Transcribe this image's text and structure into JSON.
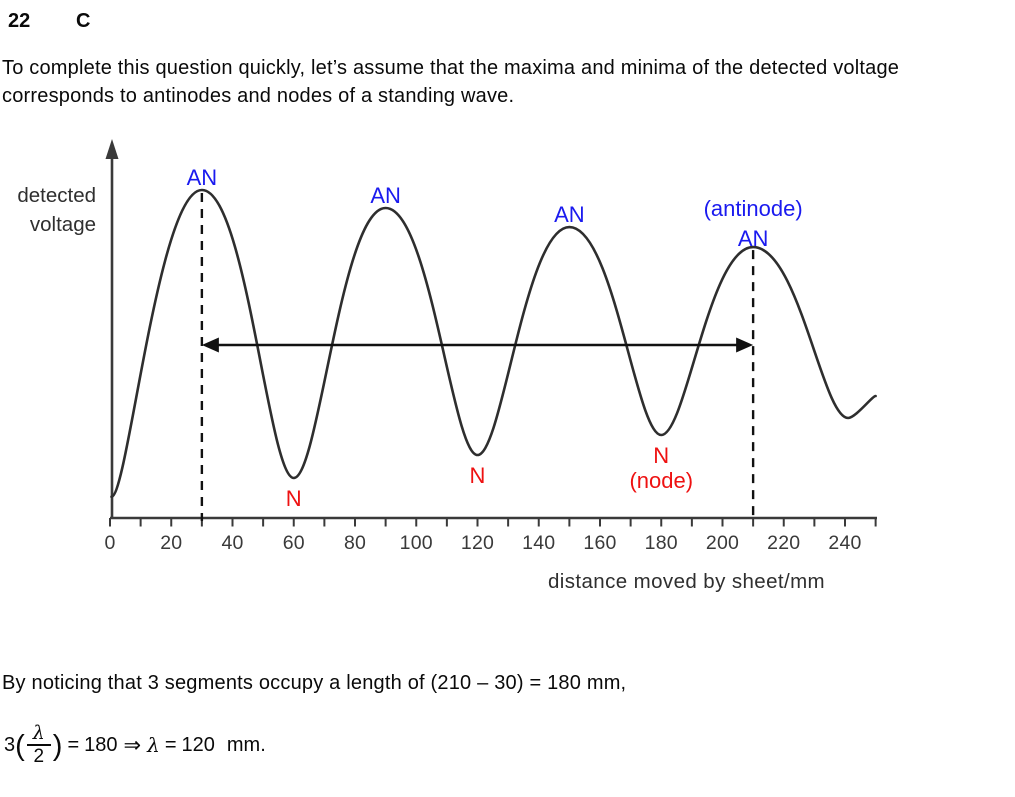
{
  "header": {
    "question_number": "22",
    "answer": "C"
  },
  "intro": {
    "lines": [
      "To complete this question quickly, let’s assume that the maxima and minima of the detected voltage",
      "corresponds to antinodes and nodes of a standing wave."
    ]
  },
  "chart_data": {
    "type": "line",
    "xlabel": "distance moved by sheet/mm",
    "ylabel_lines": [
      "detected",
      "voltage"
    ],
    "xlim_mm": [
      0,
      250
    ],
    "x_ticks_minor_step_mm": 10,
    "x_tick_labels": [
      0,
      20,
      40,
      60,
      80,
      100,
      120,
      140,
      160,
      180,
      200,
      220,
      240
    ],
    "y_units": "relative detected voltage (axis unnumbered)",
    "curve_points": [
      {
        "mm": 0.5,
        "v": 0.065,
        "kind": "start"
      },
      {
        "mm": 30,
        "v": 1.0,
        "kind": "max"
      },
      {
        "mm": 60,
        "v": 0.122,
        "kind": "min"
      },
      {
        "mm": 90,
        "v": 0.945,
        "kind": "max"
      },
      {
        "mm": 120,
        "v": 0.192,
        "kind": "min"
      },
      {
        "mm": 150,
        "v": 0.887,
        "kind": "max"
      },
      {
        "mm": 180,
        "v": 0.253,
        "kind": "min"
      },
      {
        "mm": 210,
        "v": 0.826,
        "kind": "max"
      },
      {
        "mm": 241,
        "v": 0.305,
        "kind": "min"
      },
      {
        "mm": 250,
        "v": 0.372,
        "kind": "end"
      }
    ],
    "antinodes": [
      {
        "mm": 30,
        "v": 1.0,
        "label": "AN",
        "dashed_line": true
      },
      {
        "mm": 90,
        "v": 0.945,
        "label": "AN"
      },
      {
        "mm": 150,
        "v": 0.887,
        "label": "AN"
      },
      {
        "mm": 210,
        "v": 0.826,
        "label": "AN",
        "annotation": "(antinode)",
        "dashed_line": true
      }
    ],
    "nodes": [
      {
        "mm": 60,
        "v": 0.122,
        "label": "N"
      },
      {
        "mm": 120,
        "v": 0.192,
        "label": "N"
      },
      {
        "mm": 180,
        "v": 0.253,
        "label": "N",
        "annotation": "(node)"
      }
    ],
    "arrow": {
      "from_mm": 30,
      "to_mm": 210,
      "double_headed": true
    },
    "colors": {
      "antinode_label": "#1a1aef",
      "node_label": "#ee1111",
      "curve": "#2e2e2e",
      "axis": "#3a3a3a",
      "dashed": "#111111"
    }
  },
  "conclusion": "By noticing that 3 segments occupy a length of (210 – 30) = 180 mm,",
  "formula": {
    "coefficient": "3",
    "open_paren": "(",
    "numerator": "λ",
    "denominator": "2",
    "close_paren": ")",
    "equals1": "=",
    "rhs1": "180",
    "implies": "⇒",
    "lambda": "λ",
    "equals2": "=",
    "rhs2": "120",
    "unit": "mm."
  }
}
